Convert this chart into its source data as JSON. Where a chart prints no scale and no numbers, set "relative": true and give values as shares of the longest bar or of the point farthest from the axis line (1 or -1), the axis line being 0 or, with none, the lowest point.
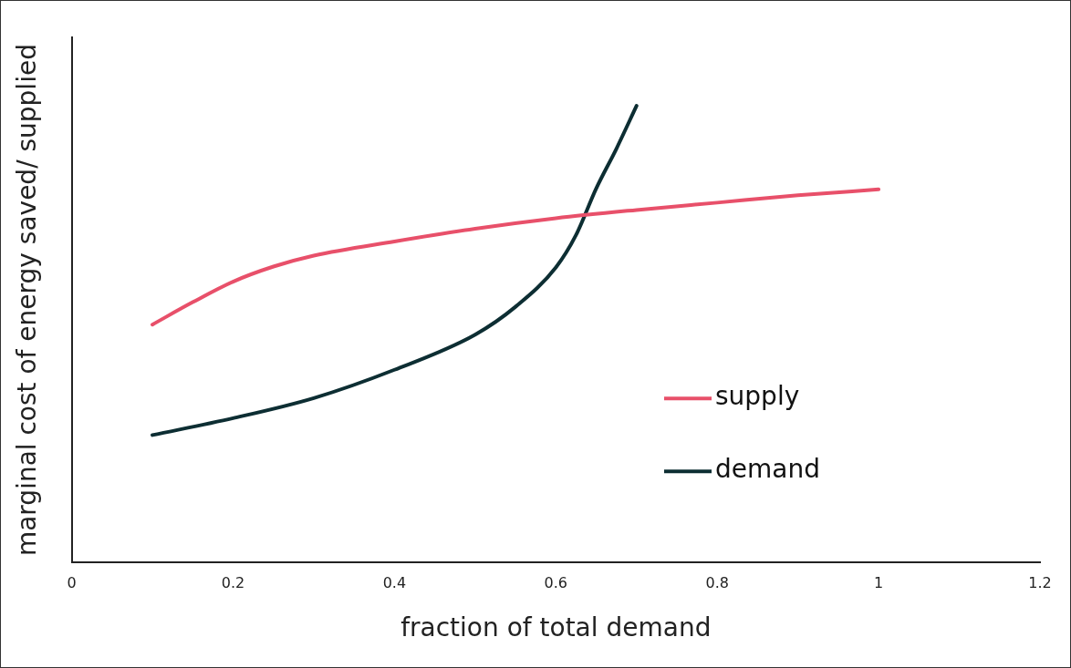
{
  "chart_data": {
    "type": "line",
    "relative": true,
    "xlabel": "fraction of total demand",
    "ylabel": "marginal cost of energy saved/ supplied",
    "xlim": [
      0,
      1.2
    ],
    "xticks": [
      0,
      0.2,
      0.4,
      0.6,
      0.8,
      1,
      1.2
    ],
    "tick_labels": "x",
    "grid": false,
    "legend": "right",
    "marker": "none",
    "line_style": "solid",
    "series": [
      {
        "name": "supply",
        "color": "#e8506a",
        "x": [
          0.1,
          0.15,
          0.2,
          0.25,
          0.3,
          0.4,
          0.5,
          0.6,
          0.7,
          0.8,
          0.9,
          1
        ],
        "values": [
          0.521,
          0.57,
          0.615,
          0.648,
          0.672,
          0.703,
          0.731,
          0.754,
          0.772,
          0.788,
          0.804,
          0.817
        ]
      },
      {
        "name": "demand",
        "color": "#0d2e33",
        "x": [
          0.1,
          0.2,
          0.3,
          0.4,
          0.5,
          0.55,
          0.6,
          0.625,
          0.65,
          0.675,
          0.7
        ],
        "values": [
          0.279,
          0.316,
          0.36,
          0.422,
          0.499,
          0.56,
          0.646,
          0.717,
          0.819,
          0.906,
          1
        ]
      }
    ]
  }
}
